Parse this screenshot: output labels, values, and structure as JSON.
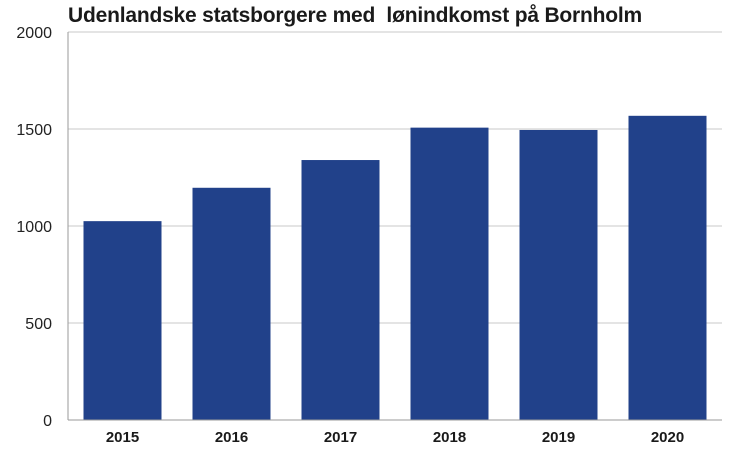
{
  "chart_data": {
    "type": "bar",
    "title": "Udenlandske statsborgere med  lønindkomst på Bornholm",
    "categories": [
      "2015",
      "2016",
      "2017",
      "2018",
      "2019",
      "2020"
    ],
    "values": [
      1025,
      1197,
      1340,
      1507,
      1495,
      1568
    ],
    "ylim": [
      0,
      2000
    ],
    "yticks": [
      "0",
      "500",
      "1000",
      "1500",
      "2000"
    ],
    "grid": true,
    "bar_color": "#21418a",
    "grid_color": "#c8c8c8",
    "axis_color": "#9a9a9a"
  }
}
